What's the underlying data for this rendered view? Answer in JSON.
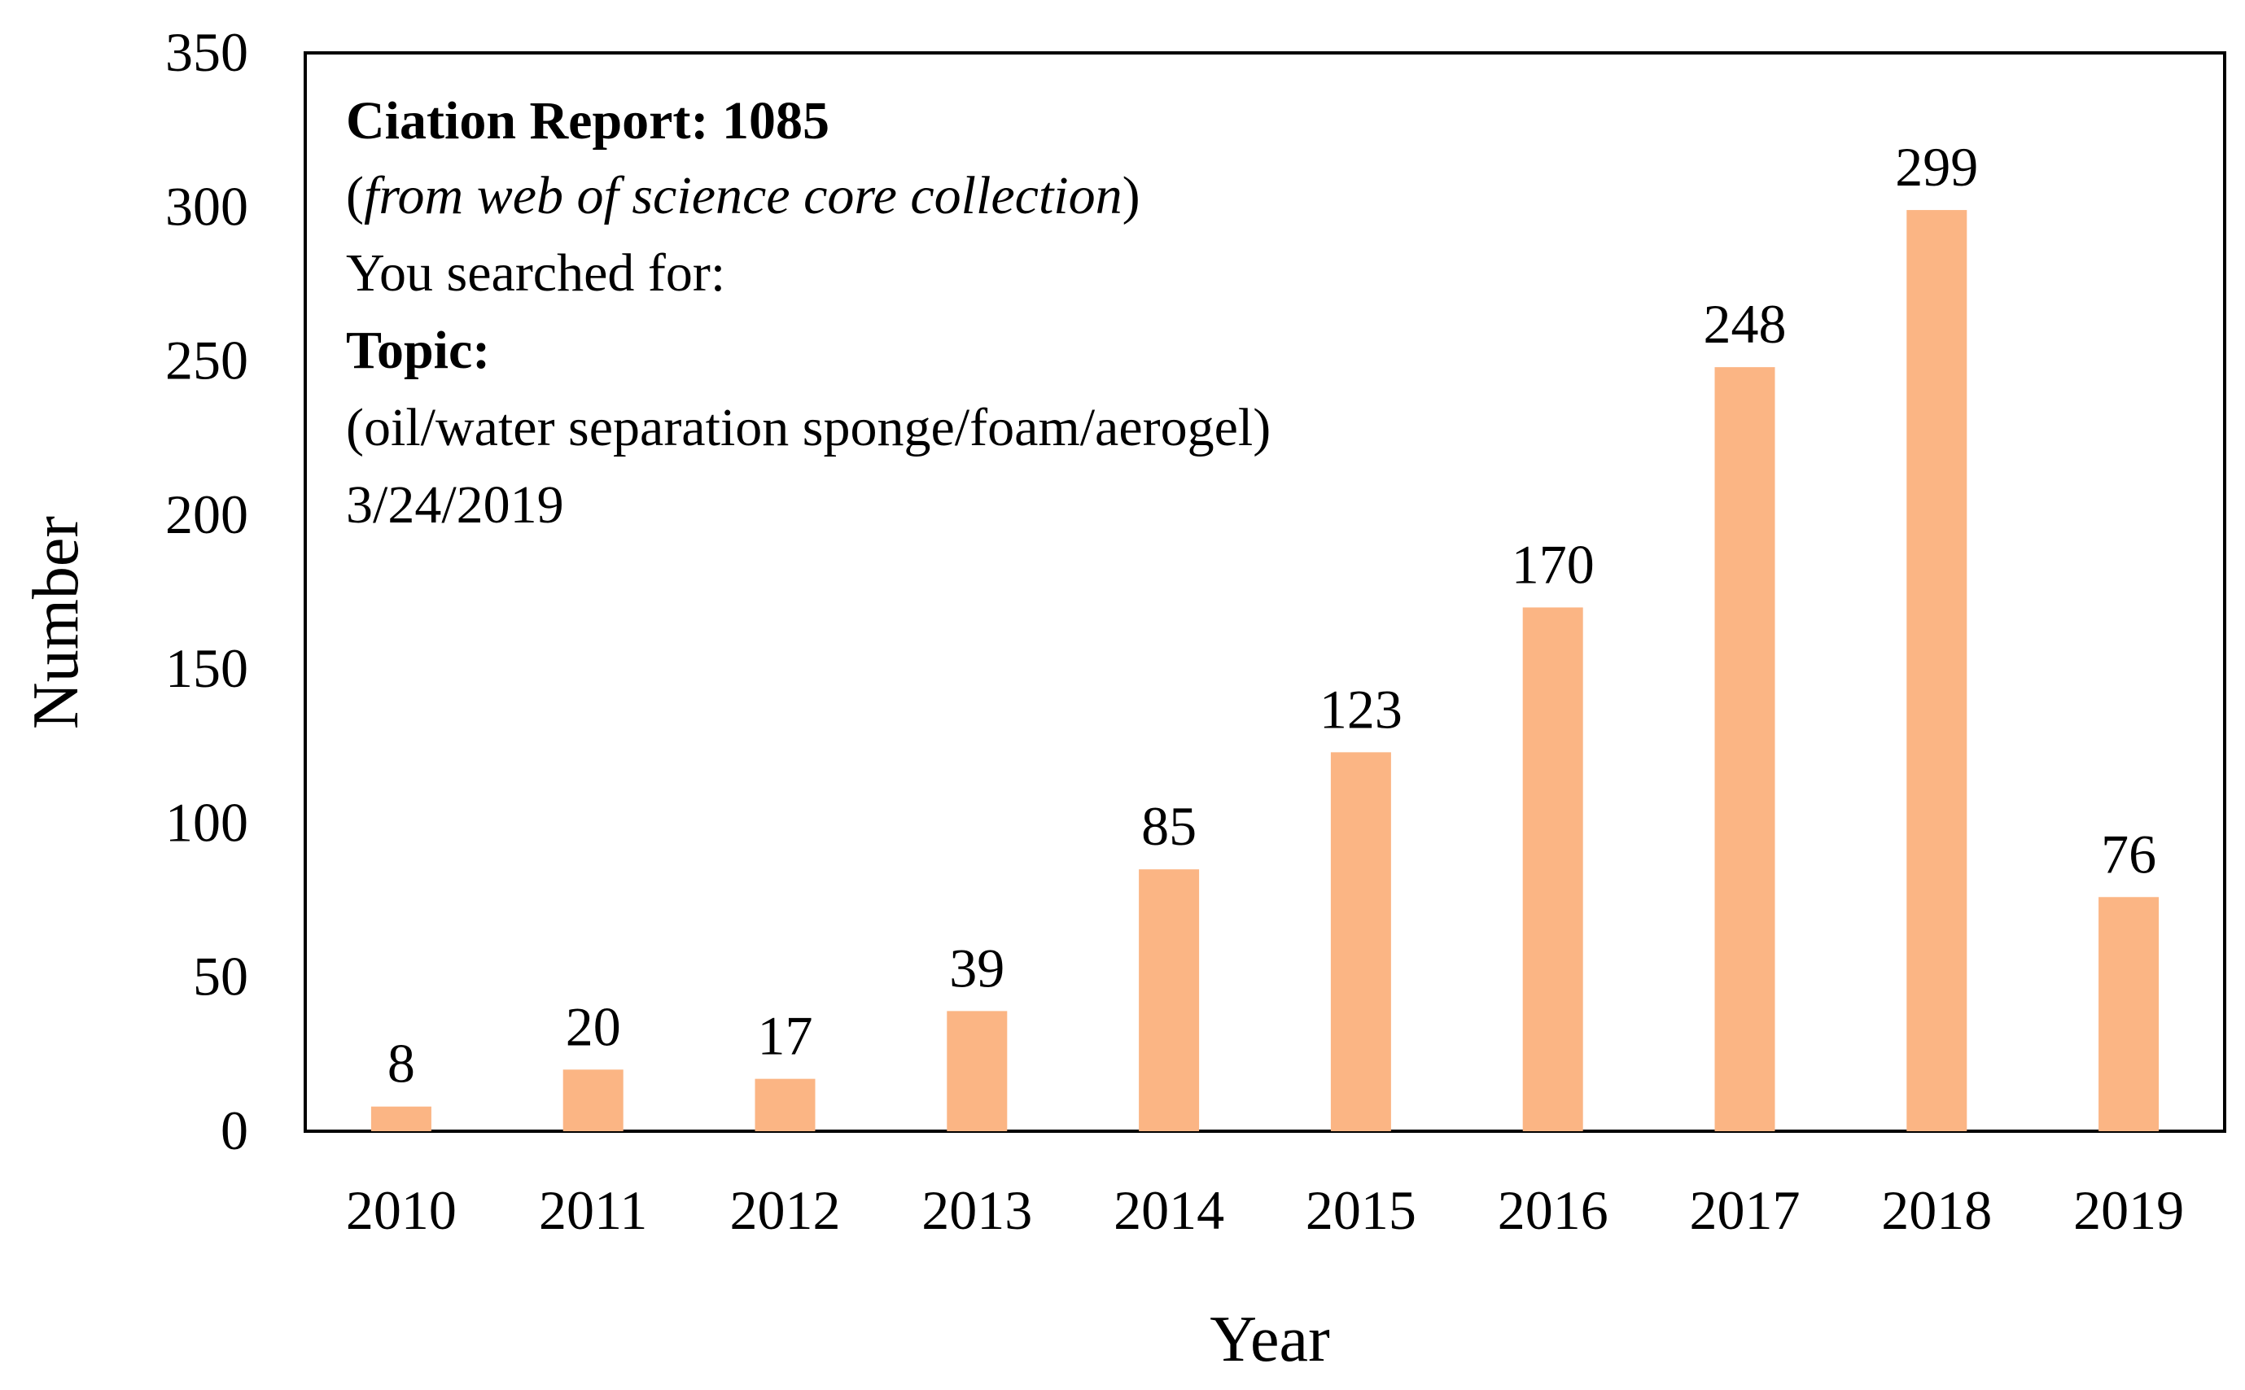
{
  "chart_data": {
    "type": "bar",
    "title": "",
    "xlabel": "Year",
    "ylabel": "Number",
    "ylim": [
      0,
      350
    ],
    "yticks": [
      0,
      50,
      100,
      150,
      200,
      250,
      300,
      350
    ],
    "categories": [
      "2010",
      "2011",
      "2012",
      "2013",
      "2014",
      "2015",
      "2016",
      "2017",
      "2018",
      "2019"
    ],
    "values": [
      8,
      20,
      17,
      39,
      85,
      123,
      170,
      248,
      299,
      76
    ],
    "grid": false,
    "bar_color": "#FBB584",
    "annotation": {
      "title_prefix": "Ciation Report: ",
      "title_value": "1085",
      "source_open": "(",
      "source_text": "from web of science core collection",
      "source_close": ")",
      "searched_for": "You searched  for:",
      "topic_label": "Topic:",
      "topic_value": "(oil/water separation sponge/foam/aerogel)",
      "date": "3/24/2019"
    }
  }
}
